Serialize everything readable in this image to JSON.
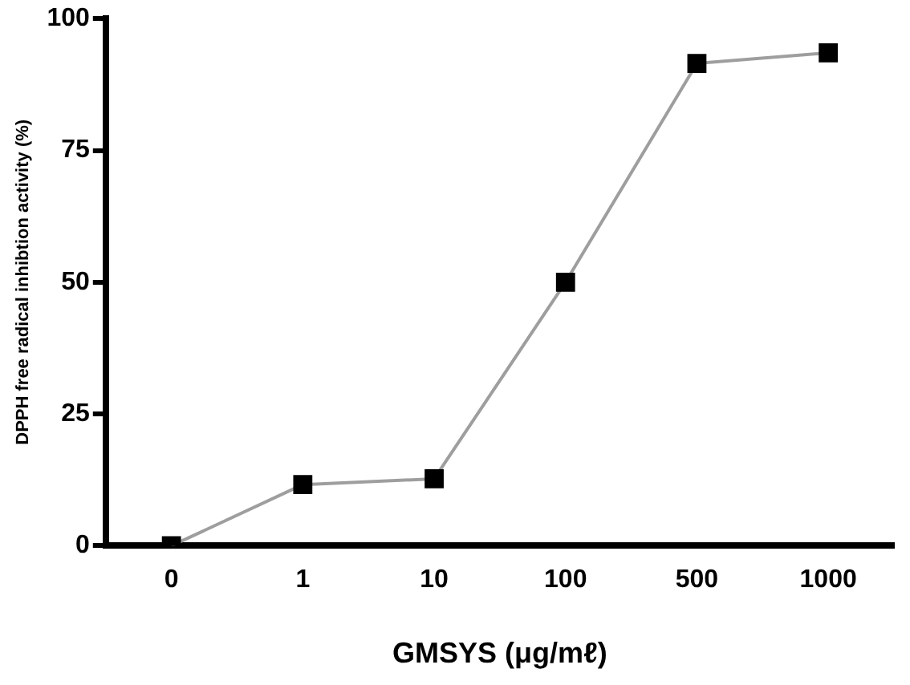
{
  "chart_data": {
    "type": "line",
    "xlabel": "GMSYS (μg/mℓ)",
    "ylabel": "DPPH free radical inhibtion activity (%)",
    "categories": [
      "0",
      "1",
      "10",
      "100",
      "500",
      "1000"
    ],
    "series": [
      {
        "color": "#000000",
        "values": [
          0,
          11.6,
          12.7,
          50,
          91.5,
          93.5
        ]
      }
    ],
    "ylim": [
      0,
      100
    ],
    "yticks": [
      0,
      25,
      50,
      75,
      100
    ],
    "grid": false,
    "legend": false,
    "marker": "square",
    "line_style": "solid"
  }
}
